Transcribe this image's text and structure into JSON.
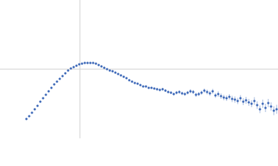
{
  "chart_data": {
    "type": "scatter",
    "xlim": [
      0,
      400
    ],
    "ylim": [
      0,
      200
    ],
    "crosshair": {
      "x": 115,
      "y": 100
    },
    "crosshair_color": "#cccccc",
    "series": [
      {
        "color": "#3b67b7",
        "x": [
          38,
          42,
          46,
          50,
          54,
          58,
          62,
          66,
          70,
          74,
          78,
          82,
          86,
          90,
          94,
          98,
          102,
          106,
          110,
          114,
          118,
          122,
          126,
          130,
          134,
          138,
          142,
          146,
          150,
          154,
          158,
          162,
          166,
          170,
          174,
          178,
          182,
          186,
          190,
          194,
          198,
          202,
          206,
          210,
          214,
          218,
          222,
          226,
          230,
          234,
          238,
          242,
          246,
          250,
          254,
          258,
          262,
          266,
          270,
          274,
          278,
          282,
          286,
          290,
          294,
          298,
          302,
          306,
          310,
          314,
          318,
          322,
          326,
          330,
          334,
          338,
          342,
          346,
          350,
          354,
          358,
          362,
          366,
          370,
          374,
          378,
          382,
          386,
          390,
          394,
          398
        ],
        "values": [
          28,
          32,
          37,
          42,
          47,
          53,
          58,
          63,
          68,
          73,
          78,
          82,
          86,
          90,
          94,
          98,
          101,
          103,
          105,
          107,
          108,
          109,
          109,
          109,
          109,
          108,
          106,
          104,
          102,
          100,
          98,
          97,
          95,
          93,
          91,
          89,
          87,
          84,
          82,
          80,
          79,
          77,
          75,
          75,
          73,
          73,
          72,
          71,
          70,
          71,
          69,
          67,
          66,
          64,
          66,
          67,
          65,
          64,
          66,
          68,
          67,
          63,
          64,
          66,
          69,
          67,
          65,
          68,
          62,
          64,
          61,
          59,
          58,
          60,
          57,
          56,
          54,
          58,
          53,
          55,
          52,
          50,
          54,
          48,
          42,
          50,
          44,
          51,
          46,
          40,
          42
        ],
        "errors": [
          0.5,
          0.5,
          0.5,
          0.5,
          0.5,
          0.5,
          0.5,
          0.5,
          0.5,
          0.5,
          0.5,
          0.5,
          0.5,
          0.5,
          0.5,
          0.5,
          0.5,
          0.5,
          0.5,
          0.5,
          0.5,
          0.5,
          0.5,
          0.5,
          0.5,
          0.5,
          0.5,
          0.5,
          0.5,
          0.5,
          0.5,
          0.5,
          0.5,
          0.5,
          0.5,
          1,
          1,
          1,
          1,
          1,
          1,
          1,
          1.5,
          1.5,
          1.5,
          1.5,
          1.5,
          2,
          2,
          2,
          2,
          2,
          2,
          2,
          2.5,
          2.5,
          2.5,
          2.5,
          2.5,
          3,
          3,
          3,
          3,
          3,
          3,
          3.5,
          3.5,
          3.5,
          3.5,
          4,
          4,
          4,
          4,
          4,
          4.5,
          4.5,
          4.5,
          4.5,
          5,
          5,
          5,
          5,
          5.5,
          5.5,
          5.5,
          6,
          6,
          6,
          6,
          6.5,
          6.5
        ]
      }
    ]
  }
}
